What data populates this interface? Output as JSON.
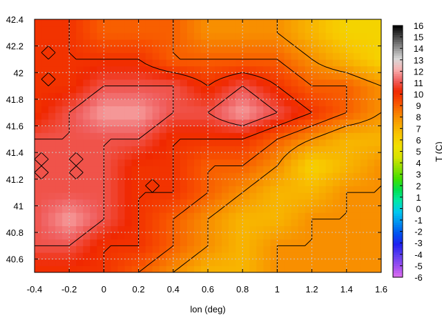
{
  "chart_data": {
    "type": "heatmap",
    "xlabel": "lon (deg)",
    "ylabel": "",
    "colorbar_label": "T (C)",
    "xlim": [
      -0.4,
      1.6
    ],
    "ylim": [
      40.5,
      42.4
    ],
    "x_ticks": [
      -0.4,
      -0.2,
      0,
      0.2,
      0.4,
      0.6,
      0.8,
      1,
      1.2,
      1.4,
      1.6
    ],
    "x_tick_labels": [
      "-0.4",
      "-0.2",
      "0",
      "0.2",
      "0.4",
      "0.6",
      "0.8",
      "1",
      "1.2",
      "1.4",
      "1.6"
    ],
    "y_ticks": [
      40.6,
      40.8,
      41,
      41.2,
      41.4,
      41.6,
      41.8,
      42,
      42.2,
      42.4
    ],
    "y_tick_labels": [
      "40.6",
      "40.8",
      "41",
      "41.2",
      "41.4",
      "41.6",
      "41.8",
      "42",
      "42.2",
      "42.4"
    ],
    "grid": true,
    "colorbar": {
      "range": [
        -6,
        16
      ],
      "ticks": [
        -6,
        -5,
        -4,
        -3,
        -2,
        -1,
        0,
        1,
        2,
        3,
        4,
        5,
        6,
        7,
        8,
        9,
        10,
        11,
        12,
        13,
        14,
        15,
        16
      ],
      "tick_labels": [
        "-6",
        "-5",
        "-4",
        "-3",
        "-2",
        "-1",
        "0",
        "1",
        "2",
        "3",
        "4",
        "5",
        "6",
        "7",
        "8",
        "9",
        "10",
        "11",
        "12",
        "13",
        "14",
        "15",
        "16"
      ],
      "colors": [
        "#e070f0",
        "#a050f0",
        "#6040f0",
        "#2020f0",
        "#0050f0",
        "#0090f0",
        "#00c8f0",
        "#00e8a8",
        "#00e050",
        "#40e000",
        "#90e000",
        "#d8e400",
        "#f0e000",
        "#f8c800",
        "#f8a800",
        "#f88000",
        "#f85000",
        "#f02800",
        "#f06060",
        "#f8b0b0",
        "#d8d8d8",
        "#909090",
        "#484848",
        "#000000"
      ]
    },
    "field": {
      "lon": [
        -0.4,
        -0.2,
        0,
        0.2,
        0.4,
        0.6,
        0.8,
        1,
        1.2,
        1.4,
        1.6
      ],
      "lat": [
        40.5,
        40.7,
        40.9,
        41.1,
        41.3,
        41.5,
        41.7,
        41.9,
        42.1,
        42.3
      ],
      "T": [
        [
          10,
          10,
          10,
          9,
          8,
          7,
          7,
          8,
          8,
          8,
          8
        ],
        [
          11,
          11,
          10,
          10,
          9,
          8,
          7,
          8,
          8,
          8,
          8
        ],
        [
          11,
          12,
          11,
          10,
          9,
          8,
          7,
          7,
          8,
          8,
          8
        ],
        [
          11,
          11,
          11,
          10,
          10,
          9,
          8,
          7,
          7,
          8,
          8
        ],
        [
          11,
          11,
          11,
          10,
          10,
          9,
          9,
          8,
          6,
          7,
          8
        ],
        [
          11,
          11,
          11,
          11,
          10,
          10,
          10,
          9,
          8,
          7,
          7
        ],
        [
          10,
          11,
          12,
          12,
          11,
          11,
          12,
          11,
          10,
          9,
          8
        ],
        [
          10,
          10,
          11,
          11,
          11,
          10,
          11,
          10,
          9,
          9,
          8
        ],
        [
          10,
          10,
          10,
          10,
          9,
          9,
          9,
          9,
          8,
          7,
          6
        ],
        [
          10,
          10,
          9,
          9,
          9,
          8,
          8,
          8,
          7,
          6,
          6
        ]
      ]
    }
  }
}
